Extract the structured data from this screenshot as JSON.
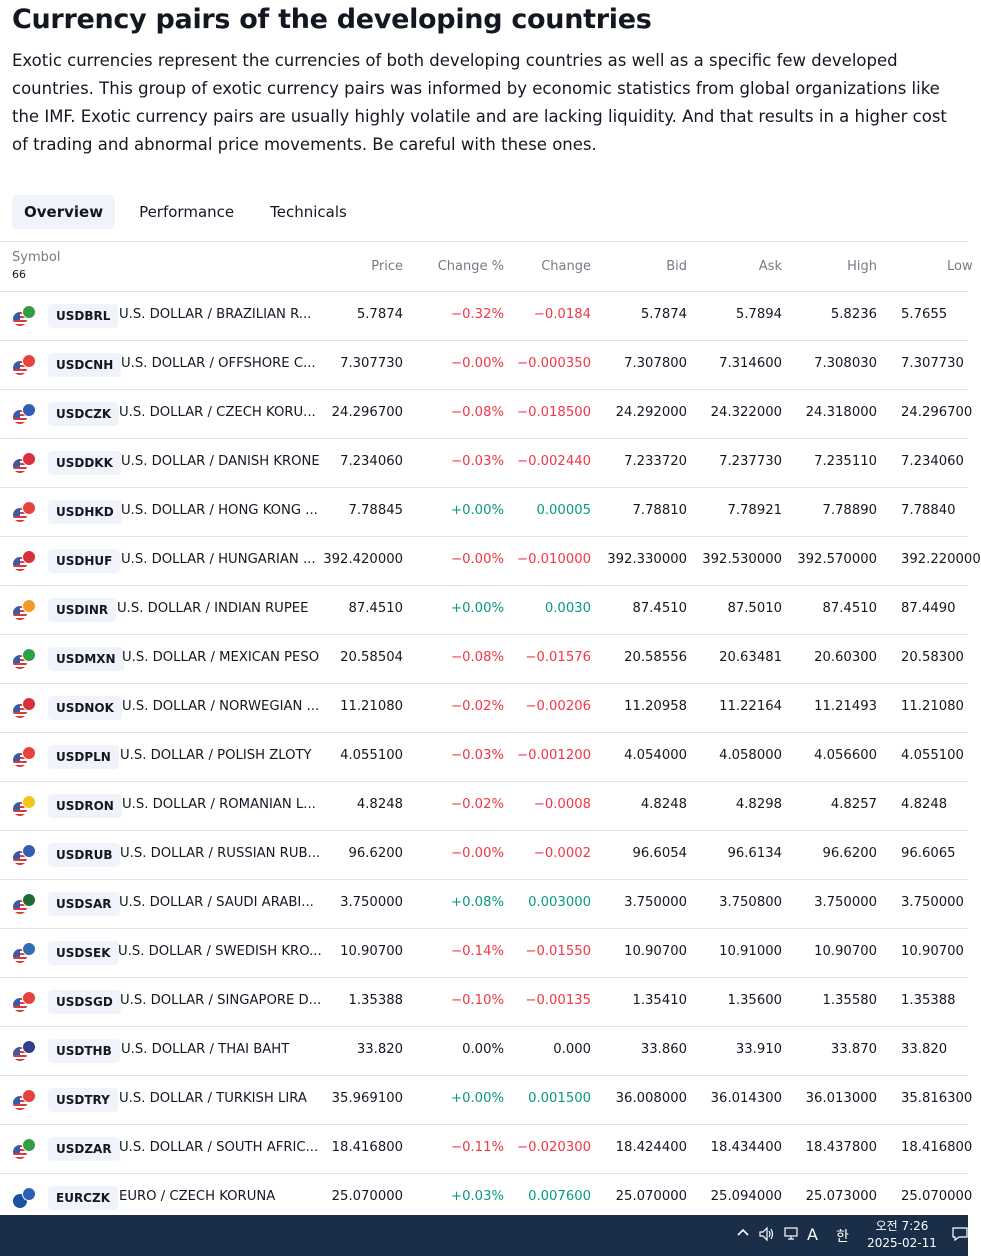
{
  "title": "Currency pairs of the developing countries",
  "description": "Exotic currencies represent the currencies of both developing countries as well as a specific few developed countries. This group of exotic currency pairs was informed by economic statistics from global organizations like the IMF. Exotic currency pairs are usually highly volatile and are lacking liquidity. And that results in a higher cost of trading and abnormal price movements. Be careful with these ones.",
  "tabs": [
    "Overview",
    "Performance",
    "Technicals"
  ],
  "table": {
    "headers": {
      "symbol": "Symbol",
      "count": "66",
      "price": "Price",
      "change_pct": "Change %",
      "change": "Change",
      "bid": "Bid",
      "ask": "Ask",
      "high": "High",
      "low": "Low"
    },
    "rows": [
      {
        "symbol": "USDBRL",
        "name": "U.S. DOLLAR / BRAZILIAN R...",
        "price": "5.7874",
        "change_pct": "−0.32%",
        "change": "−0.0184",
        "bid": "5.7874",
        "ask": "5.7894",
        "high": "5.8236",
        "low": "5.7655",
        "dir": "neg",
        "flag_color": "#2f9e45"
      },
      {
        "symbol": "USDCNH",
        "name": "U.S. DOLLAR / OFFSHORE C...",
        "price": "7.307730",
        "change_pct": "−0.00%",
        "change": "−0.000350",
        "bid": "7.307800",
        "ask": "7.314600",
        "high": "7.308030",
        "low": "7.307730",
        "dir": "neg",
        "flag_color": "#e8423f"
      },
      {
        "symbol": "USDCZK",
        "name": "U.S. DOLLAR / CZECH KORU...",
        "price": "24.296700",
        "change_pct": "−0.08%",
        "change": "−0.018500",
        "bid": "24.292000",
        "ask": "24.322000",
        "high": "24.318000",
        "low": "24.296700",
        "dir": "neg",
        "flag_color": "#2f5fb3"
      },
      {
        "symbol": "USDDKK",
        "name": "U.S. DOLLAR / DANISH KRONE",
        "price": "7.234060",
        "change_pct": "−0.03%",
        "change": "−0.002440",
        "bid": "7.233720",
        "ask": "7.237730",
        "high": "7.235110",
        "low": "7.234060",
        "dir": "neg",
        "flag_color": "#d9303e"
      },
      {
        "symbol": "USDHKD",
        "name": "U.S. DOLLAR / HONG KONG ...",
        "price": "7.78845",
        "change_pct": "+0.00%",
        "change": "0.00005",
        "bid": "7.78810",
        "ask": "7.78921",
        "high": "7.78890",
        "low": "7.78840",
        "dir": "pos",
        "flag_color": "#e8423f"
      },
      {
        "symbol": "USDHUF",
        "name": "U.S. DOLLAR / HUNGARIAN ...",
        "price": "392.420000",
        "change_pct": "−0.00%",
        "change": "−0.010000",
        "bid": "392.330000",
        "ask": "392.530000",
        "high": "392.570000",
        "low": "392.220000",
        "dir": "neg",
        "flag_color": "#d9303e"
      },
      {
        "symbol": "USDINR",
        "name": "U.S. DOLLAR / INDIAN RUPEE",
        "price": "87.4510",
        "change_pct": "+0.00%",
        "change": "0.0030",
        "bid": "87.4510",
        "ask": "87.5010",
        "high": "87.4510",
        "low": "87.4490",
        "dir": "pos",
        "flag_color": "#f39b2a"
      },
      {
        "symbol": "USDMXN",
        "name": "U.S. DOLLAR / MEXICAN PESO",
        "price": "20.58504",
        "change_pct": "−0.08%",
        "change": "−0.01576",
        "bid": "20.58556",
        "ask": "20.63481",
        "high": "20.60300",
        "low": "20.58300",
        "dir": "neg",
        "flag_color": "#2f9e45"
      },
      {
        "symbol": "USDNOK",
        "name": "U.S. DOLLAR / NORWEGIAN ...",
        "price": "11.21080",
        "change_pct": "−0.02%",
        "change": "−0.00206",
        "bid": "11.20958",
        "ask": "11.22164",
        "high": "11.21493",
        "low": "11.21080",
        "dir": "neg",
        "flag_color": "#d9303e"
      },
      {
        "symbol": "USDPLN",
        "name": "U.S. DOLLAR / POLISH ZLOTY",
        "price": "4.055100",
        "change_pct": "−0.03%",
        "change": "−0.001200",
        "bid": "4.054000",
        "ask": "4.058000",
        "high": "4.056600",
        "low": "4.055100",
        "dir": "neg",
        "flag_color": "#e8423f"
      },
      {
        "symbol": "USDRON",
        "name": "U.S. DOLLAR / ROMANIAN L...",
        "price": "4.8248",
        "change_pct": "−0.02%",
        "change": "−0.0008",
        "bid": "4.8248",
        "ask": "4.8298",
        "high": "4.8257",
        "low": "4.8248",
        "dir": "neg",
        "flag_color": "#f5c518"
      },
      {
        "symbol": "USDRUB",
        "name": "U.S. DOLLAR / RUSSIAN RUB...",
        "price": "96.6200",
        "change_pct": "−0.00%",
        "change": "−0.0002",
        "bid": "96.6054",
        "ask": "96.6134",
        "high": "96.6200",
        "low": "96.6065",
        "dir": "neg",
        "flag_color": "#2f5fb3"
      },
      {
        "symbol": "USDSAR",
        "name": "U.S. DOLLAR / SAUDI ARABI...",
        "price": "3.750000",
        "change_pct": "+0.08%",
        "change": "0.003000",
        "bid": "3.750000",
        "ask": "3.750800",
        "high": "3.750000",
        "low": "3.750000",
        "dir": "pos",
        "flag_color": "#1e6b34"
      },
      {
        "symbol": "USDSEK",
        "name": "U.S. DOLLAR / SWEDISH KRO...",
        "price": "10.90700",
        "change_pct": "−0.14%",
        "change": "−0.01550",
        "bid": "10.90700",
        "ask": "10.91000",
        "high": "10.90700",
        "low": "10.90700",
        "dir": "neg",
        "flag_color": "#2f6fb8"
      },
      {
        "symbol": "USDSGD",
        "name": "U.S. DOLLAR / SINGAPORE D...",
        "price": "1.35388",
        "change_pct": "−0.10%",
        "change": "−0.00135",
        "bid": "1.35410",
        "ask": "1.35600",
        "high": "1.35580",
        "low": "1.35388",
        "dir": "neg",
        "flag_color": "#e8423f"
      },
      {
        "symbol": "USDTHB",
        "name": "U.S. DOLLAR / THAI BAHT",
        "price": "33.820",
        "change_pct": "0.00%",
        "change": "0.000",
        "bid": "33.860",
        "ask": "33.910",
        "high": "33.870",
        "low": "33.820",
        "dir": "zero",
        "flag_color": "#2f3f8f"
      },
      {
        "symbol": "USDTRY",
        "name": "U.S. DOLLAR / TURKISH LIRA",
        "price": "35.969100",
        "change_pct": "+0.00%",
        "change": "0.001500",
        "bid": "36.008000",
        "ask": "36.014300",
        "high": "36.013000",
        "low": "35.816300",
        "dir": "pos",
        "flag_color": "#e8423f"
      },
      {
        "symbol": "USDZAR",
        "name": "U.S. DOLLAR / SOUTH AFRIC...",
        "price": "18.416800",
        "change_pct": "−0.11%",
        "change": "−0.020300",
        "bid": "18.424400",
        "ask": "18.434400",
        "high": "18.437800",
        "low": "18.416800",
        "dir": "neg",
        "flag_color": "#2f9e45"
      },
      {
        "symbol": "EURCZK",
        "name": "EURO / CZECH KORUNA",
        "price": "25.070000",
        "change_pct": "+0.03%",
        "change": "0.007600",
        "bid": "25.070000",
        "ask": "25.094000",
        "high": "25.073000",
        "low": "25.070000",
        "dir": "pos",
        "flag_color": "#2f5fb3",
        "base_color": "#1d4fa3"
      }
    ]
  },
  "taskbar": {
    "icons": [
      "chevron-up-icon",
      "speaker-icon",
      "network-icon",
      "ime-icon",
      "korean-ime-icon",
      "notification-icon"
    ],
    "ime": "A",
    "ime_korean": "한",
    "time": "오전 7:26",
    "date": "2025-02-11"
  }
}
